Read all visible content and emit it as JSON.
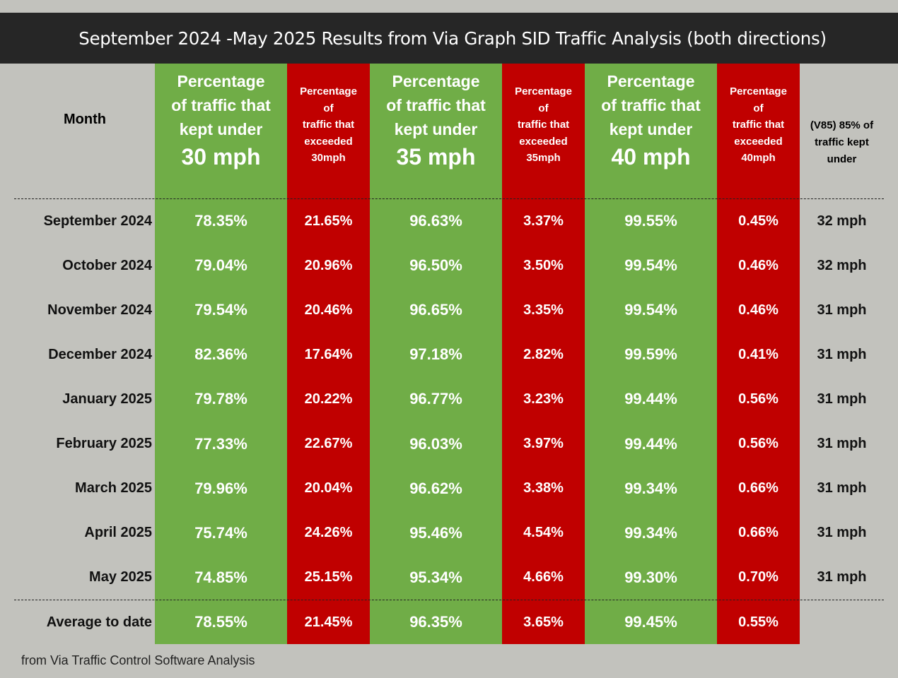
{
  "title": "September 2024 -May 2025 Results from Via Graph SID Traffic Analysis (both directions)",
  "colors": {
    "background": "#c2c2bd",
    "title_bar": "#262626",
    "kept_under": "#70ad47",
    "exceeded": "#c00000"
  },
  "headers": {
    "month": "Month",
    "kept30": {
      "line1": "Percentage",
      "line2": "of traffic that",
      "line3": "kept under",
      "speed": "30 mph"
    },
    "exceeded30": {
      "line1": "Percentage",
      "line2": "of",
      "line3": "traffic that",
      "line4": "exceeded",
      "speed": "30mph"
    },
    "kept35": {
      "line1": "Percentage",
      "line2": "of traffic that",
      "line3": "kept under",
      "speed": "35 mph"
    },
    "exceeded35": {
      "line1": "Percentage",
      "line2": "of",
      "line3": "traffic that",
      "line4": "exceeded",
      "speed": "35mph"
    },
    "kept40": {
      "line1": "Percentage",
      "line2": "of traffic that",
      "line3": "kept under",
      "speed": "40 mph"
    },
    "exceeded40": {
      "line1": "Percentage",
      "line2": "of",
      "line3": "traffic that",
      "line4": "exceeded",
      "speed": "40mph"
    },
    "v85": {
      "line1": "(V85) 85% of",
      "line2": "traffic kept",
      "line3": "under"
    }
  },
  "rows": [
    {
      "month": "September 2024",
      "kept30": "78.35%",
      "exceeded30": "21.65%",
      "kept35": "96.63%",
      "exceeded35": "3.37%",
      "kept40": "99.55%",
      "exceeded40": "0.45%",
      "v85": "32 mph"
    },
    {
      "month": "October 2024",
      "kept30": "79.04%",
      "exceeded30": "20.96%",
      "kept35": "96.50%",
      "exceeded35": "3.50%",
      "kept40": "99.54%",
      "exceeded40": "0.46%",
      "v85": "32 mph"
    },
    {
      "month": "November 2024",
      "kept30": "79.54%",
      "exceeded30": "20.46%",
      "kept35": "96.65%",
      "exceeded35": "3.35%",
      "kept40": "99.54%",
      "exceeded40": "0.46%",
      "v85": "31 mph"
    },
    {
      "month": "December 2024",
      "kept30": "82.36%",
      "exceeded30": "17.64%",
      "kept35": "97.18%",
      "exceeded35": "2.82%",
      "kept40": "99.59%",
      "exceeded40": "0.41%",
      "v85": "31 mph"
    },
    {
      "month": "January 2025",
      "kept30": "79.78%",
      "exceeded30": "20.22%",
      "kept35": "96.77%",
      "exceeded35": "3.23%",
      "kept40": "99.44%",
      "exceeded40": "0.56%",
      "v85": "31 mph"
    },
    {
      "month": "February 2025",
      "kept30": "77.33%",
      "exceeded30": "22.67%",
      "kept35": "96.03%",
      "exceeded35": "3.97%",
      "kept40": "99.44%",
      "exceeded40": "0.56%",
      "v85": "31 mph"
    },
    {
      "month": "March 2025",
      "kept30": "79.96%",
      "exceeded30": "20.04%",
      "kept35": "96.62%",
      "exceeded35": "3.38%",
      "kept40": "99.34%",
      "exceeded40": "0.66%",
      "v85": "31 mph"
    },
    {
      "month": "April 2025",
      "kept30": "75.74%",
      "exceeded30": "24.26%",
      "kept35": "95.46%",
      "exceeded35": "4.54%",
      "kept40": "99.34%",
      "exceeded40": "0.66%",
      "v85": "31 mph"
    },
    {
      "month": "May 2025",
      "kept30": "74.85%",
      "exceeded30": "25.15%",
      "kept35": "95.34%",
      "exceeded35": "4.66%",
      "kept40": "99.30%",
      "exceeded40": "0.70%",
      "v85": "31 mph"
    }
  ],
  "average": {
    "month": "Average to date",
    "kept30": "78.55%",
    "exceeded30": "21.45%",
    "kept35": "96.35%",
    "exceeded35": "3.65%",
    "kept40": "99.45%",
    "exceeded40": "0.55%"
  },
  "footer": "from Via Traffic Control Software Analysis"
}
